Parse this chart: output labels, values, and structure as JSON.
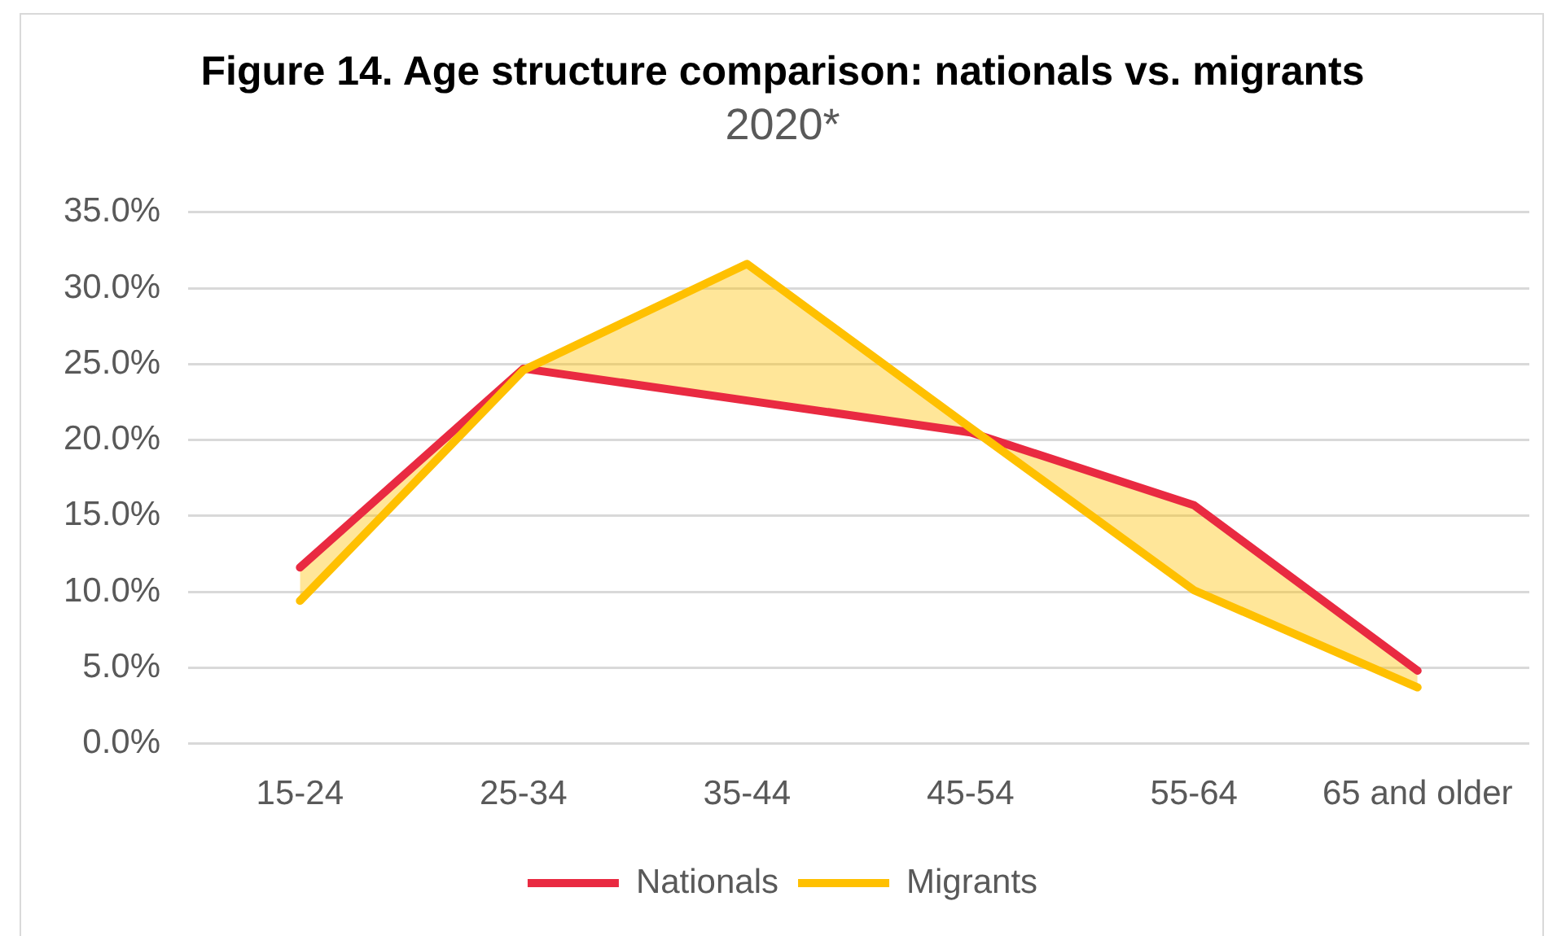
{
  "chart_data": {
    "type": "line",
    "title": "Figure 14. Age structure comparison: nationals vs. migrants",
    "subtitle": "2020*",
    "categories": [
      "15-24",
      "25-34",
      "35-44",
      "45-54",
      "55-64",
      "65 and older"
    ],
    "series": [
      {
        "name": "Nationals",
        "color": "#e92a41",
        "values": [
          11.6,
          24.7,
          22.6,
          20.5,
          15.7,
          4.8
        ]
      },
      {
        "name": "Migrants",
        "color": "#ffc000",
        "values": [
          9.4,
          24.6,
          31.6,
          20.8,
          10.1,
          3.7
        ]
      }
    ],
    "ylim": [
      0,
      35
    ],
    "yticks": [
      {
        "value": 0,
        "label": "0.0%"
      },
      {
        "value": 5,
        "label": "5.0%"
      },
      {
        "value": 10,
        "label": "10.0%"
      },
      {
        "value": 15,
        "label": "15.0%"
      },
      {
        "value": 20,
        "label": "20.0%"
      },
      {
        "value": 25,
        "label": "25.0%"
      },
      {
        "value": 30,
        "label": "30.0%"
      },
      {
        "value": 35,
        "label": "35.0%"
      }
    ],
    "grid": "y",
    "legend": "bottom",
    "marker": "none",
    "line_style": "solid"
  }
}
